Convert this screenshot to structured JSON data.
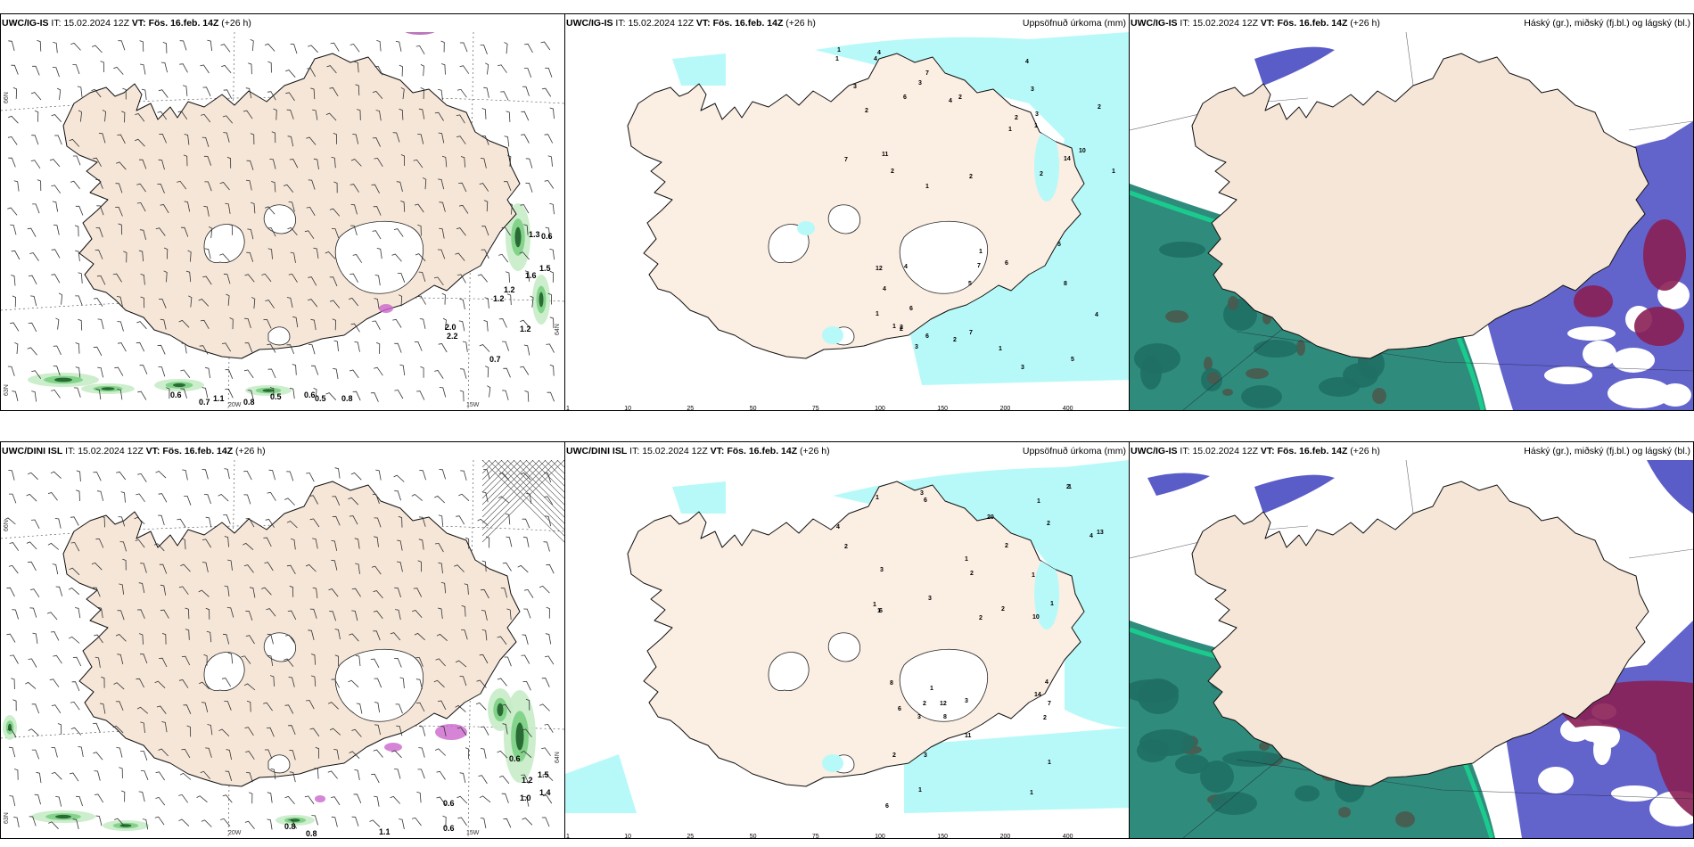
{
  "panels": [
    {
      "model": "UWC/IG-IS",
      "it_label": "IT:",
      "it_value": "15.02.2024 12Z",
      "vt_label": "VT:",
      "vt_value": "Fös. 16.feb. 14Z",
      "lead": "(+26 h)",
      "right_title": "",
      "type": "wind",
      "lat_labels": [
        "66N",
        "64N",
        "63N"
      ],
      "lon_labels": [
        "20W",
        "15W"
      ],
      "labels": [
        "0.6",
        "0.7",
        "1.1",
        "0.8",
        "0.5",
        "0.6",
        "0.5",
        "0.8",
        "2.0",
        "2.2",
        "0.7",
        "1.3",
        "0.6",
        "1.5",
        "1.2",
        "1.2",
        "1.6",
        "1.2"
      ]
    },
    {
      "model": "UWC/IG-IS",
      "it_label": "IT:",
      "it_value": "15.02.2024 12Z",
      "vt_label": "VT:",
      "vt_value": "Fös. 16.feb. 14Z",
      "lead": "(+26 h)",
      "right_title": "Uppsöfnuð úrkoma (mm)",
      "type": "precip",
      "labels": [
        "1",
        "3",
        "2",
        "1",
        "4",
        "2",
        "1",
        "4",
        "3",
        "1",
        "4",
        "2",
        "6",
        "4",
        "3",
        "2",
        "7",
        "2",
        "7",
        "3",
        "14",
        "10",
        "11",
        "1",
        "1",
        "2",
        "2",
        "2",
        "1",
        "1",
        "1",
        "2",
        "6",
        "3",
        "7",
        "5",
        "8",
        "12",
        "7",
        "6",
        "5",
        "4",
        "3",
        "4",
        "6",
        "2",
        "4",
        "5",
        "1"
      ]
    },
    {
      "model": "UWC/IG-IS",
      "it_label": "IT:",
      "it_value": "15.02.2024 12Z",
      "vt_label": "VT:",
      "vt_value": "Fös. 16.feb. 14Z",
      "lead": "(+26 h)",
      "right_title": "Háský (gr.), miðský (fj.bl.) og lágský (bl.)",
      "type": "cloud"
    },
    {
      "model": "UWC/DINI ISL",
      "it_label": "IT:",
      "it_value": "15.02.2024 12Z",
      "vt_label": "VT:",
      "vt_value": "Fös. 16.feb. 14Z",
      "lead": "(+26 h)",
      "right_title": "",
      "type": "wind",
      "lat_labels": [
        "66N",
        "64N",
        "63N"
      ],
      "lon_labels": [
        "20W",
        "15W"
      ],
      "labels": [
        "0.6",
        "1.2",
        "1.0",
        "1.4",
        "1.5",
        "0.6",
        "1.1",
        "0.8",
        "0.8",
        "0.6"
      ]
    },
    {
      "model": "UWC/DINI ISL",
      "it_label": "IT:",
      "it_value": "15.02.2024 12Z",
      "vt_label": "VT:",
      "vt_value": "Fös. 16.feb. 14Z",
      "lead": "(+26 h)",
      "right_title": "Uppsöfnuð úrkoma (mm)",
      "type": "precip",
      "labels": [
        "4",
        "2",
        "1",
        "3",
        "2",
        "2",
        "1",
        "1",
        "2",
        "4",
        "6",
        "6",
        "2",
        "3",
        "2",
        "20",
        "10",
        "13",
        "1",
        "1",
        "1",
        "1",
        "1",
        "2",
        "3",
        "1",
        "1",
        "4",
        "6",
        "7",
        "8",
        "11",
        "12",
        "14",
        "3",
        "8",
        "3",
        "3",
        "2",
        "6",
        "2",
        "1",
        "1",
        "2"
      ]
    },
    {
      "model": "UWC/IG-IS",
      "it_label": "IT:",
      "it_value": "15.02.2024 12Z",
      "vt_label": "VT:",
      "vt_value": "Fös. 16.feb. 14Z",
      "lead": "(+26 h)",
      "right_title": "Háský (gr.), miðský (fj.bl.) og lágský (bl.)",
      "type": "cloud"
    }
  ],
  "precip_legend": {
    "ticks": [
      "1",
      "10",
      "25",
      "50",
      "75",
      "100",
      "150",
      "200",
      "400"
    ],
    "colors": [
      "#b7f9f9",
      "#00e6ea",
      "#1cbde8",
      "#2c7de9",
      "#2136b6",
      "#640a4e",
      "#a5127a",
      "#ea10a7",
      "#f5a8ef"
    ]
  },
  "colors": {
    "land": "#f5e6d8",
    "land_precip": "#fbeee2",
    "ice": "#ffffff",
    "precip_light": "#b7f9f9",
    "cloud_low": "#2f8c7c",
    "cloud_mid": "#5a5cc8",
    "cloud_high": "#8a1f55",
    "wind_shade": "#58c270",
    "snow_mix": "#cc66cc"
  }
}
